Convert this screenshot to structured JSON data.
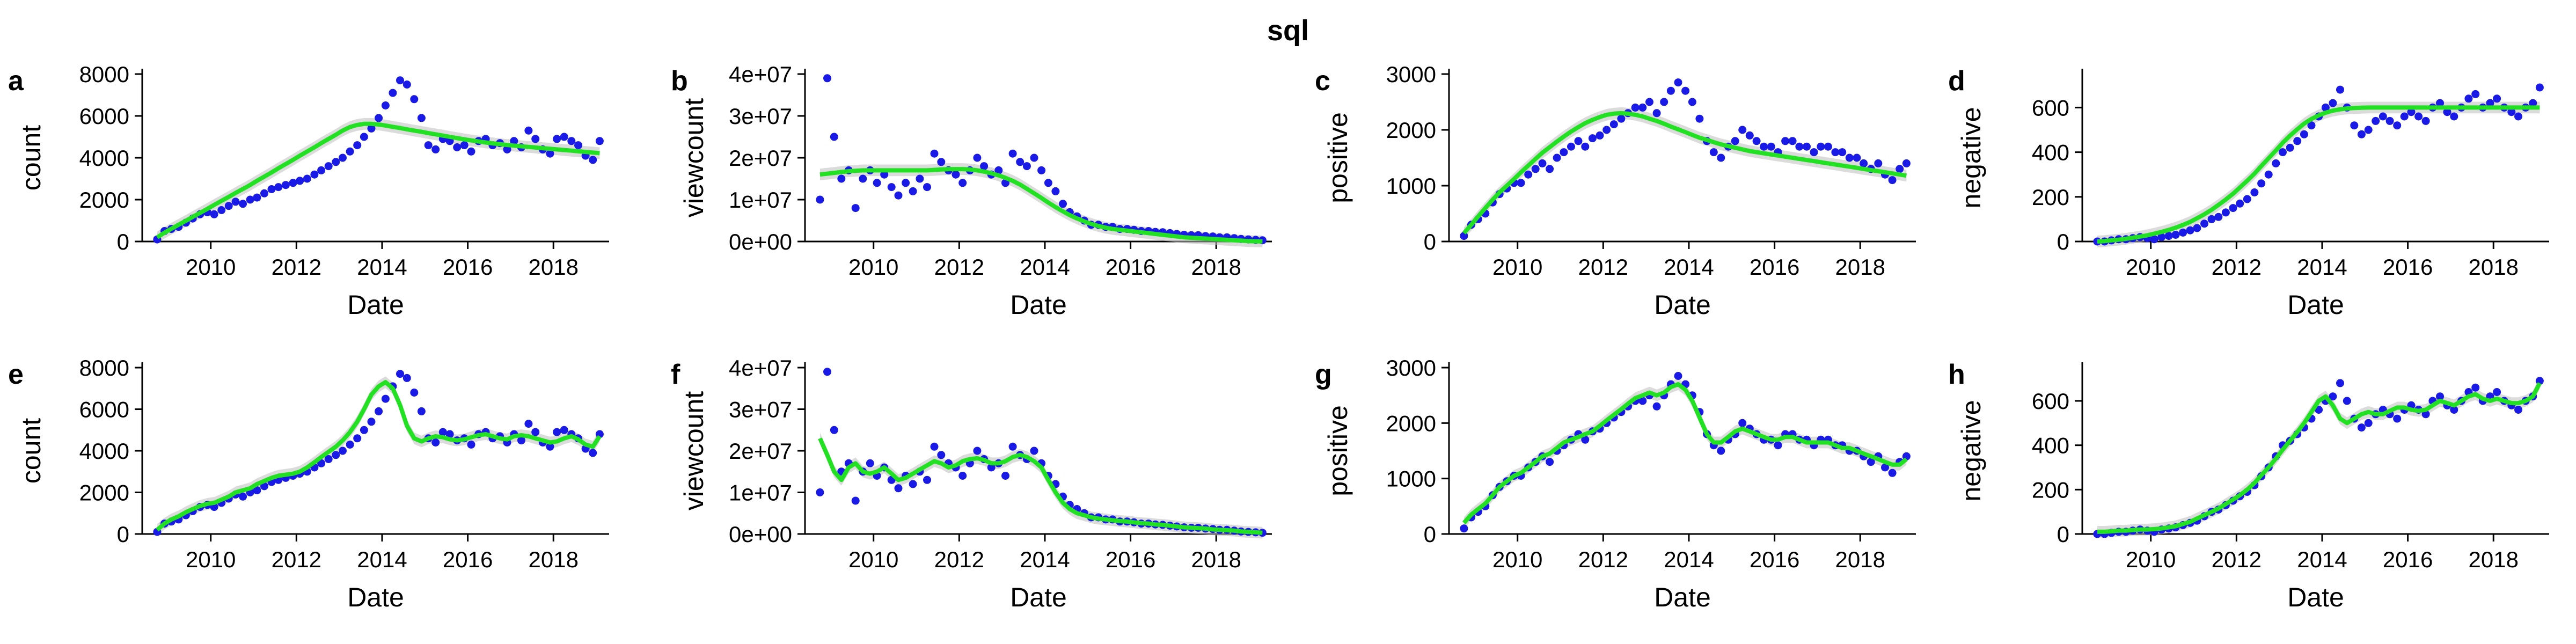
{
  "figure": {
    "title": "sql"
  },
  "style": {
    "point_color": "#1a1ae6",
    "line_color": "#22e022",
    "band_color": "#bdbdbd"
  },
  "chart_data": [
    {
      "panel": "a",
      "type": "scatter",
      "ylabel": "count",
      "xlabel": "Date",
      "xlim": [
        2008.4,
        2019.3
      ],
      "ylim": [
        0,
        8000
      ],
      "yticks": [
        0,
        2000,
        4000,
        6000,
        8000
      ],
      "yticklabels": [
        "0",
        "2000",
        "4000",
        "6000",
        "8000"
      ],
      "xticks": [
        2010,
        2012,
        2014,
        2016,
        2018
      ],
      "xticklabels": [
        "2010",
        "2012",
        "2014",
        "2016",
        "2018"
      ],
      "smooth": "loess",
      "series": "count"
    },
    {
      "panel": "b",
      "type": "scatter",
      "ylabel": "viewcount",
      "xlabel": "Date",
      "xlim": [
        2008.4,
        2019.3
      ],
      "ylim": [
        0,
        40000000
      ],
      "yticks": [
        0,
        10000000,
        20000000,
        30000000,
        40000000
      ],
      "yticklabels": [
        "0e+00",
        "1e+07",
        "2e+07",
        "3e+07",
        "4e+07"
      ],
      "xticks": [
        2010,
        2012,
        2014,
        2016,
        2018
      ],
      "xticklabels": [
        "2010",
        "2012",
        "2014",
        "2016",
        "2018"
      ],
      "smooth": "loess",
      "series": "viewcount"
    },
    {
      "panel": "c",
      "type": "scatter",
      "ylabel": "positive",
      "xlabel": "Date",
      "xlim": [
        2008.4,
        2019.3
      ],
      "ylim": [
        0,
        3000
      ],
      "yticks": [
        0,
        1000,
        2000,
        3000
      ],
      "yticklabels": [
        "0",
        "1000",
        "2000",
        "3000"
      ],
      "xticks": [
        2010,
        2012,
        2014,
        2016,
        2018
      ],
      "xticklabels": [
        "2010",
        "2012",
        "2014",
        "2016",
        "2018"
      ],
      "smooth": "loess",
      "series": "positive"
    },
    {
      "panel": "d",
      "type": "scatter",
      "ylabel": "negative",
      "xlabel": "Date",
      "xlim": [
        2008.4,
        2019.3
      ],
      "ylim": [
        0,
        750
      ],
      "yticks": [
        0,
        200,
        400,
        600
      ],
      "yticklabels": [
        "0",
        "200",
        "400",
        "600"
      ],
      "xticks": [
        2010,
        2012,
        2014,
        2016,
        2018
      ],
      "xticklabels": [
        "2010",
        "2012",
        "2014",
        "2016",
        "2018"
      ],
      "smooth": "loess",
      "series": "negative"
    },
    {
      "panel": "e",
      "type": "scatter",
      "ylabel": "count",
      "xlabel": "Date",
      "xlim": [
        2008.4,
        2019.3
      ],
      "ylim": [
        0,
        8000
      ],
      "yticks": [
        0,
        2000,
        4000,
        6000,
        8000
      ],
      "yticklabels": [
        "0",
        "2000",
        "4000",
        "6000",
        "8000"
      ],
      "xticks": [
        2010,
        2012,
        2014,
        2016,
        2018
      ],
      "xticklabels": [
        "2010",
        "2012",
        "2014",
        "2016",
        "2018"
      ],
      "smooth": "gam",
      "series": "count"
    },
    {
      "panel": "f",
      "type": "scatter",
      "ylabel": "viewcount",
      "xlabel": "Date",
      "xlim": [
        2008.4,
        2019.3
      ],
      "ylim": [
        0,
        40000000
      ],
      "yticks": [
        0,
        10000000,
        20000000,
        30000000,
        40000000
      ],
      "yticklabels": [
        "0e+00",
        "1e+07",
        "2e+07",
        "3e+07",
        "4e+07"
      ],
      "xticks": [
        2010,
        2012,
        2014,
        2016,
        2018
      ],
      "xticklabels": [
        "2010",
        "2012",
        "2014",
        "2016",
        "2018"
      ],
      "smooth": "gam",
      "series": "viewcount"
    },
    {
      "panel": "g",
      "type": "scatter",
      "ylabel": "positive",
      "xlabel": "Date",
      "xlim": [
        2008.4,
        2019.3
      ],
      "ylim": [
        0,
        3000
      ],
      "yticks": [
        0,
        1000,
        2000,
        3000
      ],
      "yticklabels": [
        "0",
        "1000",
        "2000",
        "3000"
      ],
      "xticks": [
        2010,
        2012,
        2014,
        2016,
        2018
      ],
      "xticklabels": [
        "2010",
        "2012",
        "2014",
        "2016",
        "2018"
      ],
      "smooth": "gam",
      "series": "positive"
    },
    {
      "panel": "h",
      "type": "scatter",
      "ylabel": "negative",
      "xlabel": "Date",
      "xlim": [
        2008.4,
        2019.3
      ],
      "ylim": [
        0,
        750
      ],
      "yticks": [
        0,
        200,
        400,
        600
      ],
      "yticklabels": [
        "0",
        "200",
        "400",
        "600"
      ],
      "xticks": [
        2010,
        2012,
        2014,
        2016,
        2018
      ],
      "xticklabels": [
        "2010",
        "2012",
        "2014",
        "2016",
        "2018"
      ],
      "smooth": "gam",
      "series": "negative"
    }
  ],
  "series_data": {
    "dates": [
      2008.75,
      2008.92,
      2009.08,
      2009.25,
      2009.42,
      2009.58,
      2009.75,
      2009.92,
      2010.08,
      2010.25,
      2010.42,
      2010.58,
      2010.75,
      2010.92,
      2011.08,
      2011.25,
      2011.42,
      2011.58,
      2011.75,
      2011.92,
      2012.08,
      2012.25,
      2012.42,
      2012.58,
      2012.75,
      2012.92,
      2013.08,
      2013.25,
      2013.42,
      2013.58,
      2013.75,
      2013.92,
      2014.08,
      2014.25,
      2014.42,
      2014.58,
      2014.75,
      2014.92,
      2015.08,
      2015.25,
      2015.42,
      2015.58,
      2015.75,
      2015.92,
      2016.08,
      2016.25,
      2016.42,
      2016.58,
      2016.75,
      2016.92,
      2017.08,
      2017.25,
      2017.42,
      2017.58,
      2017.75,
      2017.92,
      2018.08,
      2018.25,
      2018.42,
      2018.58,
      2018.75,
      2018.92,
      2019.08
    ],
    "count": [
      100,
      500,
      600,
      700,
      900,
      1100,
      1300,
      1400,
      1300,
      1500,
      1700,
      1900,
      1800,
      2000,
      2100,
      2300,
      2500,
      2600,
      2700,
      2800,
      2900,
      3000,
      3200,
      3400,
      3600,
      3800,
      4000,
      4300,
      4600,
      5000,
      5400,
      5900,
      6500,
      7100,
      7700,
      7500,
      6800,
      5900,
      4600,
      4400,
      4900,
      4800,
      4500,
      4600,
      4300,
      4800,
      4900,
      4600,
      4700,
      4400,
      4800,
      4500,
      5300,
      4900,
      4400,
      4200,
      4900,
      5000,
      4800,
      4600,
      4100,
      3900,
      4800
    ],
    "count_smooth_a": [
      200,
      420,
      610,
      800,
      990,
      1180,
      1370,
      1560,
      1750,
      1940,
      2130,
      2320,
      2510,
      2700,
      2900,
      3100,
      3300,
      3500,
      3700,
      3900,
      4100,
      4300,
      4500,
      4700,
      4900,
      5100,
      5300,
      5470,
      5570,
      5620,
      5620,
      5590,
      5540,
      5480,
      5420,
      5360,
      5300,
      5240,
      5180,
      5120,
      5060,
      5000,
      4940,
      4880,
      4830,
      4780,
      4730,
      4690,
      4650,
      4610,
      4580,
      4550,
      4520,
      4490,
      4460,
      4430,
      4400,
      4370,
      4340,
      4310,
      4280,
      4250,
      4220
    ],
    "count_smooth_e": [
      200,
      500,
      700,
      850,
      1050,
      1200,
      1350,
      1450,
      1500,
      1650,
      1800,
      2000,
      2100,
      2200,
      2400,
      2550,
      2700,
      2800,
      2850,
      2900,
      3000,
      3200,
      3450,
      3700,
      3950,
      4200,
      4500,
      4900,
      5400,
      6000,
      6700,
      7100,
      7300,
      7000,
      6200,
      5200,
      4600,
      4450,
      4600,
      4700,
      4650,
      4550,
      4500,
      4550,
      4650,
      4750,
      4800,
      4700,
      4600,
      4550,
      4700,
      4750,
      4700,
      4600,
      4500,
      4400,
      4450,
      4600,
      4700,
      4550,
      4300,
      4200,
      4700
    ],
    "viewcount": [
      10000000,
      39000000,
      25000000,
      15000000,
      17000000,
      8000000,
      15000000,
      17000000,
      14000000,
      16000000,
      13000000,
      11000000,
      14000000,
      12000000,
      15000000,
      13000000,
      21000000,
      19000000,
      17000000,
      16000000,
      14000000,
      17000000,
      20000000,
      18000000,
      16000000,
      17000000,
      14000000,
      21000000,
      19000000,
      18000000,
      20000000,
      17000000,
      14000000,
      12000000,
      9000000,
      7000000,
      6000000,
      5000000,
      4000000,
      4000000,
      3500000,
      3500000,
      3000000,
      3000000,
      2800000,
      2500000,
      2500000,
      2300000,
      2200000,
      2000000,
      1800000,
      1600000,
      1500000,
      1500000,
      1300000,
      1200000,
      1000000,
      1000000,
      800000,
      600000,
      500000,
      400000,
      300000
    ],
    "viewcount_smooth_b": [
      16000000,
      16200000,
      16400000,
      16600000,
      16800000,
      16900000,
      17000000,
      17000000,
      17000000,
      17000000,
      17000000,
      17000000,
      17000000,
      17000000,
      17000000,
      17000000,
      17100000,
      17200000,
      17300000,
      17300000,
      17300000,
      17200000,
      17000000,
      16700000,
      16300000,
      15800000,
      15200000,
      14500000,
      13600000,
      12600000,
      11500000,
      10400000,
      9300000,
      8200000,
      7200000,
      6300000,
      5500000,
      4800000,
      4200000,
      3700000,
      3300000,
      3000000,
      2800000,
      2600000,
      2400000,
      2200000,
      2000000,
      1800000,
      1600000,
      1400000,
      1200000,
      1000000,
      900000,
      800000,
      700000,
      600000,
      500000,
      400000,
      300000,
      200000,
      100000,
      50000,
      30000
    ],
    "viewcount_smooth_f": [
      23000000,
      19000000,
      15000000,
      13000000,
      16000000,
      17000000,
      15000000,
      14500000,
      15000000,
      16000000,
      14500000,
      13000000,
      13500000,
      14500000,
      15500000,
      16500000,
      17500000,
      17000000,
      16000000,
      16500000,
      17500000,
      18000000,
      18200000,
      17800000,
      17000000,
      17000000,
      17500000,
      18500000,
      19000000,
      18500000,
      17500000,
      16000000,
      13000000,
      10000000,
      7500000,
      6000000,
      5000000,
      4500000,
      4000000,
      3700000,
      3500000,
      3300000,
      3100000,
      3000000,
      2800000,
      2600000,
      2500000,
      2300000,
      2200000,
      2000000,
      1800000,
      1600000,
      1500000,
      1400000,
      1300000,
      1100000,
      1000000,
      900000,
      800000,
      600000,
      500000,
      400000,
      300000
    ],
    "positive": [
      100,
      300,
      400,
      500,
      700,
      850,
      950,
      1050,
      1050,
      1200,
      1300,
      1400,
      1300,
      1500,
      1600,
      1700,
      1800,
      1700,
      1850,
      1900,
      2000,
      2100,
      2200,
      2300,
      2400,
      2400,
      2500,
      2300,
      2500,
      2700,
      2850,
      2700,
      2500,
      2200,
      1800,
      1600,
      1500,
      1700,
      1800,
      2000,
      1900,
      1800,
      1700,
      1700,
      1600,
      1800,
      1800,
      1700,
      1700,
      1600,
      1700,
      1700,
      1600,
      1600,
      1500,
      1500,
      1400,
      1300,
      1400,
      1200,
      1100,
      1300,
      1400
    ],
    "positive_smooth_c": [
      150,
      300,
      450,
      600,
      750,
      880,
      1000,
      1120,
      1240,
      1360,
      1480,
      1590,
      1690,
      1790,
      1880,
      1970,
      2050,
      2120,
      2180,
      2230,
      2270,
      2290,
      2300,
      2290,
      2270,
      2240,
      2200,
      2160,
      2110,
      2060,
      2010,
      1960,
      1910,
      1860,
      1820,
      1780,
      1740,
      1710,
      1680,
      1650,
      1620,
      1600,
      1580,
      1560,
      1540,
      1520,
      1500,
      1480,
      1460,
      1440,
      1420,
      1400,
      1380,
      1360,
      1340,
      1320,
      1300,
      1280,
      1260,
      1240,
      1220,
      1200,
      1180
    ],
    "positive_smooth_g": [
      200,
      350,
      450,
      550,
      700,
      850,
      950,
      1050,
      1100,
      1200,
      1300,
      1400,
      1450,
      1550,
      1650,
      1700,
      1750,
      1800,
      1850,
      1950,
      2050,
      2150,
      2250,
      2350,
      2450,
      2500,
      2550,
      2500,
      2550,
      2650,
      2700,
      2600,
      2400,
      2100,
      1800,
      1650,
      1650,
      1750,
      1850,
      1900,
      1850,
      1800,
      1750,
      1700,
      1700,
      1750,
      1750,
      1700,
      1650,
      1650,
      1650,
      1650,
      1600,
      1550,
      1550,
      1500,
      1450,
      1400,
      1350,
      1300,
      1250,
      1250,
      1350
    ],
    "negative": [
      0,
      0,
      5,
      10,
      10,
      15,
      20,
      15,
      10,
      20,
      25,
      30,
      40,
      50,
      60,
      80,
      100,
      110,
      130,
      150,
      170,
      190,
      220,
      260,
      300,
      350,
      400,
      420,
      450,
      480,
      520,
      560,
      600,
      620,
      680,
      600,
      520,
      480,
      500,
      540,
      560,
      540,
      520,
      560,
      580,
      560,
      540,
      600,
      620,
      580,
      560,
      600,
      640,
      660,
      600,
      620,
      640,
      600,
      580,
      560,
      600,
      620,
      690
    ],
    "negative_smooth_d": [
      0,
      2,
      5,
      8,
      12,
      17,
      22,
      28,
      35,
      43,
      52,
      62,
      74,
      88,
      104,
      122,
      142,
      164,
      188,
      214,
      242,
      272,
      304,
      338,
      373,
      408,
      442,
      474,
      503,
      528,
      549,
      565,
      577,
      586,
      592,
      596,
      598,
      599,
      600,
      600,
      600,
      600,
      600,
      600,
      600,
      600,
      600,
      600,
      600,
      600,
      600,
      600,
      600,
      600,
      600,
      600,
      600,
      600,
      600,
      600,
      600,
      600,
      600
    ],
    "negative_smooth_h": [
      10,
      10,
      12,
      15,
      15,
      18,
      20,
      20,
      22,
      25,
      30,
      35,
      45,
      55,
      70,
      85,
      100,
      115,
      135,
      155,
      175,
      200,
      230,
      265,
      300,
      340,
      380,
      420,
      460,
      500,
      550,
      600,
      620,
      580,
      520,
      500,
      520,
      540,
      550,
      540,
      540,
      555,
      570,
      570,
      560,
      555,
      560,
      580,
      600,
      590,
      580,
      600,
      620,
      630,
      610,
      600,
      610,
      600,
      590,
      590,
      600,
      620,
      680
    ]
  }
}
